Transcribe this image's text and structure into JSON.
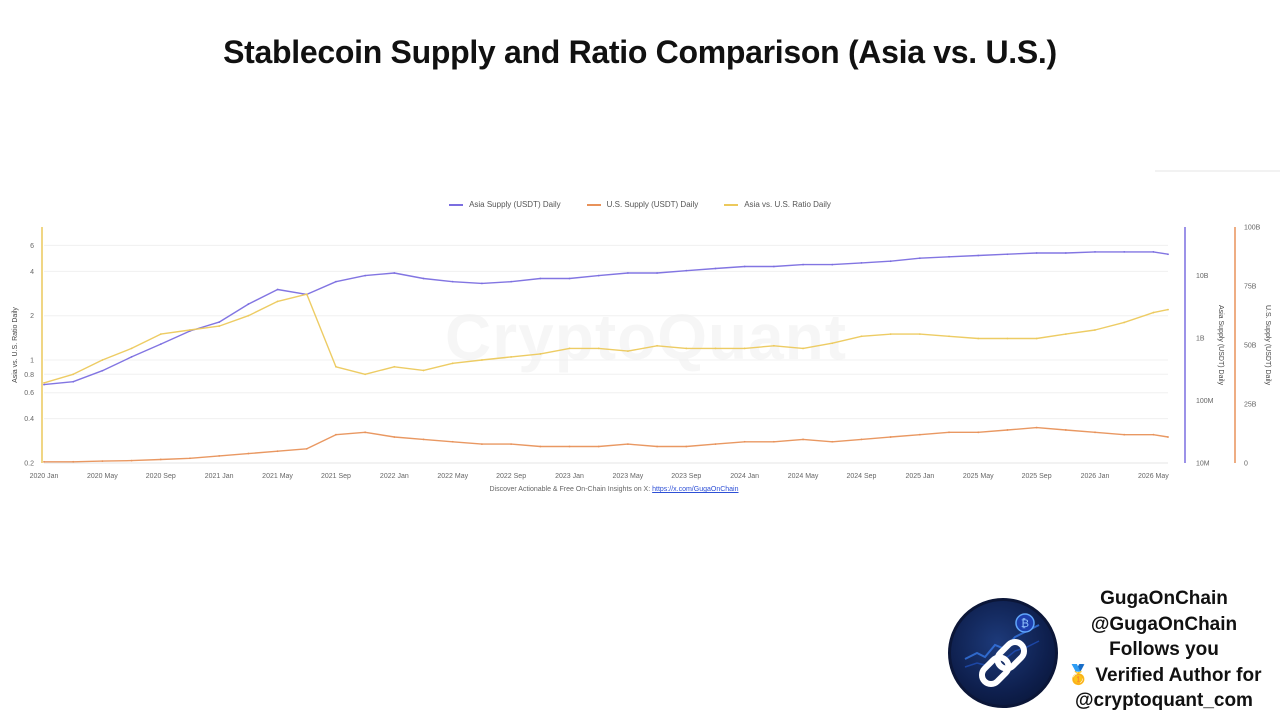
{
  "title": "Stablecoin Supply and Ratio Comparison (Asia vs. U.S.)",
  "legend": [
    {
      "label": "Asia Supply (USDT) Daily",
      "color": "#7b6ee0"
    },
    {
      "label": "U.S. Supply (USDT) Daily",
      "color": "#e8925a"
    },
    {
      "label": "Asia vs. U.S. Ratio Daily",
      "color": "#ecc95c"
    }
  ],
  "footer": {
    "text": "Discover Actionable & Free On-Chain Insights on X: ",
    "link": "https://x.com/GugaOnChain"
  },
  "watermark": "CryptoQuant",
  "author": {
    "name": "GugaOnChain",
    "handle": "@GugaOnChain",
    "follows": "Follows you",
    "verified_badge": "🥇",
    "verified": "Verified Author for",
    "org": "@cryptoquant_com"
  },
  "chart_data": {
    "type": "line",
    "x_ticks": [
      "2020 Jan",
      "2020 May",
      "2020 Sep",
      "2021 Jan",
      "2021 May",
      "2021 Sep",
      "2022 Jan",
      "2022 May",
      "2022 Sep",
      "2023 Jan",
      "2023 May",
      "2023 Sep",
      "2024 Jan",
      "2024 May",
      "2024 Sep",
      "2025 Jan",
      "2025 May",
      "2025 Sep",
      "2026 Jan",
      "2026 May"
    ],
    "left_axis": {
      "title": "Asia vs. U.S. Ratio Daily",
      "scale": "log",
      "ticks": [
        "0.2",
        "0.4",
        "0.6",
        "0.8",
        "1",
        "2",
        "4",
        "6"
      ],
      "tick_values": [
        0.2,
        0.4,
        0.6,
        0.8,
        1,
        2,
        4,
        6
      ],
      "range": [
        0.2,
        8
      ]
    },
    "right_axis_1": {
      "title": "Asia Supply (USDT) Daily",
      "scale": "log",
      "ticks": [
        "10M",
        "100M",
        "1B",
        "10B"
      ],
      "tick_values": [
        10000000,
        100000000,
        1000000000,
        10000000000
      ],
      "range": [
        10000000,
        60000000000
      ]
    },
    "right_axis_2": {
      "title": "U.S. Supply (USDT) Daily",
      "scale": "linear",
      "ticks": [
        "0",
        "25B",
        "50B",
        "75B",
        "100B"
      ],
      "tick_values": [
        0,
        25,
        50,
        75,
        100
      ],
      "range": [
        0,
        100
      ]
    },
    "series": [
      {
        "name": "Asia Supply (USDT) Daily",
        "axis": "right_axis_1",
        "color": "#7b6ee0",
        "x": [
          "2020 Jan",
          "2020 Mar",
          "2020 May",
          "2020 Jul",
          "2020 Sep",
          "2020 Nov",
          "2021 Jan",
          "2021 Mar",
          "2021 May",
          "2021 Jul",
          "2021 Sep",
          "2021 Nov",
          "2022 Jan",
          "2022 Mar",
          "2022 May",
          "2022 Jul",
          "2022 Sep",
          "2022 Nov",
          "2023 Jan",
          "2023 Mar",
          "2023 May",
          "2023 Jul",
          "2023 Sep",
          "2023 Nov",
          "2024 Jan",
          "2024 Mar",
          "2024 May",
          "2024 Jul",
          "2024 Sep",
          "2024 Nov",
          "2025 Jan",
          "2025 Mar",
          "2025 May",
          "2025 Jul",
          "2025 Sep",
          "2025 Nov",
          "2026 Jan",
          "2026 Mar",
          "2026 May",
          "2026 Jun"
        ],
        "values": [
          180000000,
          200000000,
          300000000,
          500000000,
          800000000,
          1300000000,
          1800000000,
          3500000000,
          6000000000,
          5000000000,
          8000000000,
          10000000000,
          11000000000,
          9000000000,
          8000000000,
          7500000000,
          8000000000,
          9000000000,
          9000000000,
          10000000000,
          11000000000,
          11000000000,
          12000000000,
          13000000000,
          14000000000,
          14000000000,
          15000000000,
          15000000000,
          16000000000,
          17000000000,
          19000000000,
          20000000000,
          21000000000,
          22000000000,
          23000000000,
          23000000000,
          24000000000,
          24000000000,
          24000000000,
          22000000000
        ]
      },
      {
        "name": "U.S. Supply (USDT) Daily",
        "axis": "right_axis_2",
        "color": "#e8925a",
        "x": [
          "2020 Jan",
          "2020 Mar",
          "2020 May",
          "2020 Jul",
          "2020 Sep",
          "2020 Nov",
          "2021 Jan",
          "2021 Mar",
          "2021 May",
          "2021 Jul",
          "2021 Sep",
          "2021 Nov",
          "2022 Jan",
          "2022 Mar",
          "2022 May",
          "2022 Jul",
          "2022 Sep",
          "2022 Nov",
          "2023 Jan",
          "2023 Mar",
          "2023 May",
          "2023 Jul",
          "2023 Sep",
          "2023 Nov",
          "2024 Jan",
          "2024 Mar",
          "2024 May",
          "2024 Jul",
          "2024 Sep",
          "2024 Nov",
          "2025 Jan",
          "2025 Mar",
          "2025 May",
          "2025 Jul",
          "2025 Sep",
          "2025 Nov",
          "2026 Jan",
          "2026 Mar",
          "2026 May",
          "2026 Jun"
        ],
        "values": [
          0.5,
          0.5,
          0.8,
          1,
          1.5,
          2,
          3,
          4,
          5,
          6,
          12,
          13,
          11,
          10,
          9,
          8,
          8,
          7,
          7,
          7,
          8,
          7,
          7,
          8,
          9,
          9,
          10,
          9,
          10,
          11,
          12,
          13,
          13,
          14,
          15,
          14,
          13,
          12,
          12,
          11
        ]
      },
      {
        "name": "Asia vs. U.S. Ratio Daily",
        "axis": "left_axis",
        "color": "#ecc95c",
        "x": [
          "2020 Jan",
          "2020 Mar",
          "2020 May",
          "2020 Jul",
          "2020 Sep",
          "2020 Nov",
          "2021 Jan",
          "2021 Mar",
          "2021 May",
          "2021 Jul",
          "2021 Sep",
          "2021 Nov",
          "2022 Jan",
          "2022 Mar",
          "2022 May",
          "2022 Jul",
          "2022 Sep",
          "2022 Nov",
          "2023 Jan",
          "2023 Mar",
          "2023 May",
          "2023 Jul",
          "2023 Sep",
          "2023 Nov",
          "2024 Jan",
          "2024 Mar",
          "2024 May",
          "2024 Jul",
          "2024 Sep",
          "2024 Nov",
          "2025 Jan",
          "2025 Mar",
          "2025 May",
          "2025 Jul",
          "2025 Sep",
          "2025 Nov",
          "2026 Jan",
          "2026 Mar",
          "2026 May",
          "2026 Jun"
        ],
        "values": [
          0.7,
          0.8,
          1.0,
          1.2,
          1.5,
          1.6,
          1.7,
          2.0,
          2.5,
          2.8,
          0.9,
          0.8,
          0.9,
          0.85,
          0.95,
          1.0,
          1.05,
          1.1,
          1.2,
          1.2,
          1.15,
          1.25,
          1.2,
          1.2,
          1.2,
          1.25,
          1.2,
          1.3,
          1.45,
          1.5,
          1.5,
          1.45,
          1.4,
          1.4,
          1.4,
          1.5,
          1.6,
          1.8,
          2.1,
          2.2
        ]
      }
    ]
  }
}
